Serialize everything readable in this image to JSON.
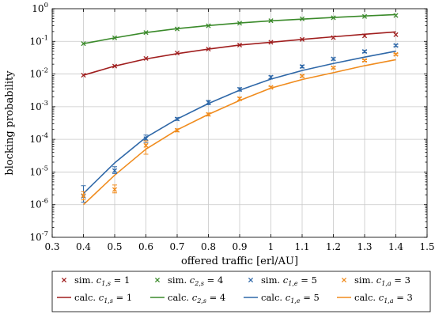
{
  "chart_data": {
    "type": "line",
    "xlabel": "offered traffic [erl/AU]",
    "ylabel": "blocking probability",
    "xlim": [
      0.3,
      1.5
    ],
    "ylim_log10": [
      -7,
      0
    ],
    "y_scale": "log",
    "grid": true,
    "legend_placement": "bottom",
    "x_ticks": [
      "0.3",
      "0.4",
      "0.5",
      "0.6",
      "0.7",
      "0.8",
      "0.9",
      "1",
      "1.1",
      "1.2",
      "1.3",
      "1.4",
      "1.5"
    ],
    "y_ticks": [
      {
        "base": "10",
        "exp": "-7"
      },
      {
        "base": "10",
        "exp": "-6"
      },
      {
        "base": "10",
        "exp": "-5"
      },
      {
        "base": "10",
        "exp": "-4"
      },
      {
        "base": "10",
        "exp": "-3"
      },
      {
        "base": "10",
        "exp": "-2"
      },
      {
        "base": "10",
        "exp": "-1"
      },
      {
        "base": "10",
        "exp": "0"
      }
    ],
    "x": [
      0.4,
      0.5,
      0.6,
      0.7,
      0.8,
      0.9,
      1.0,
      1.1,
      1.2,
      1.3,
      1.4
    ],
    "series": [
      {
        "name": "sim. c1,s = 1",
        "kind": "sim",
        "color": "#a01e1e",
        "legend": {
          "prefix": "sim.",
          "sub": "1,s",
          "value": "1"
        },
        "values": [
          0.0092,
          0.0175,
          0.03,
          0.044,
          0.058,
          0.077,
          0.094,
          0.115,
          0.13,
          0.148,
          0.16
        ],
        "err_low": null,
        "err_high": null
      },
      {
        "name": "sim. c2,s = 4",
        "kind": "sim",
        "color": "#3a8a2a",
        "legend": {
          "prefix": "sim.",
          "sub": "2,s",
          "value": "4"
        },
        "values": [
          0.085,
          0.128,
          0.186,
          0.24,
          0.3,
          0.36,
          0.43,
          0.49,
          0.53,
          0.58,
          0.62
        ],
        "err_low": null,
        "err_high": null
      },
      {
        "name": "sim. c1,e = 5",
        "kind": "sim",
        "color": "#2f68a8",
        "legend": {
          "prefix": "sim.",
          "sub": "1,e",
          "value": "5"
        },
        "values": [
          1.8e-06,
          1.1e-05,
          0.000105,
          0.00042,
          0.00135,
          0.0034,
          0.008,
          0.017,
          0.029,
          0.049,
          0.075
        ],
        "err_low": [
          1.2e-06,
          9e-06,
          8e-05,
          0.00038,
          0.00115,
          0.003,
          0.0072,
          0.0155,
          0.0265,
          0.045,
          0.069
        ],
        "err_high": [
          3.8e-06,
          1.45e-05,
          0.000135,
          0.00046,
          0.00155,
          0.0038,
          0.0088,
          0.0185,
          0.0315,
          0.053,
          0.081
        ]
      },
      {
        "name": "sim. c1,a = 3",
        "kind": "sim",
        "color": "#f08c1e",
        "legend": {
          "prefix": "sim.",
          "sub": "1,a",
          "value": "3"
        },
        "values": [
          1.9e-06,
          2.9e-06,
          6.5e-05,
          0.00019,
          0.00058,
          0.00175,
          0.0039,
          0.0087,
          0.0155,
          0.026,
          0.04
        ],
        "err_low": [
          1.4e-06,
          2.3e-06,
          3.5e-05,
          0.00017,
          0.00052,
          0.00155,
          0.0036,
          0.0081,
          0.0145,
          0.0245,
          0.0375
        ],
        "err_high": [
          2.5e-06,
          4e-06,
          9e-05,
          0.00021,
          0.00064,
          0.00195,
          0.0042,
          0.0093,
          0.0165,
          0.0275,
          0.0425
        ]
      },
      {
        "name": "calc. c1,s = 1",
        "kind": "calc",
        "color": "#a01e1e",
        "legend": {
          "prefix": "calc.",
          "sub": "1,s",
          "value": "1"
        },
        "values": [
          0.0092,
          0.0175,
          0.029,
          0.042,
          0.058,
          0.077,
          0.094,
          0.115,
          0.138,
          0.165,
          0.195
        ]
      },
      {
        "name": "calc. c2,s = 4",
        "kind": "calc",
        "color": "#3a8a2a",
        "legend": {
          "prefix": "calc.",
          "sub": "2,s",
          "value": "4"
        },
        "values": [
          0.085,
          0.128,
          0.186,
          0.245,
          0.305,
          0.365,
          0.425,
          0.48,
          0.54,
          0.6,
          0.66
        ]
      },
      {
        "name": "calc. c1,e = 5",
        "kind": "calc",
        "color": "#2f68a8",
        "legend": {
          "prefix": "calc.",
          "sub": "1,e",
          "value": "5"
        },
        "values": [
          2.2e-06,
          1.9e-05,
          0.000115,
          0.00042,
          0.00125,
          0.0032,
          0.007,
          0.0128,
          0.021,
          0.033,
          0.05
        ]
      },
      {
        "name": "calc. c1,a = 3",
        "kind": "calc",
        "color": "#f08c1e",
        "legend": {
          "prefix": "calc.",
          "sub": "1,a",
          "value": "3"
        },
        "values": [
          1e-06,
          8e-06,
          5e-05,
          0.000195,
          0.00058,
          0.00155,
          0.0037,
          0.0068,
          0.011,
          0.018,
          0.0275
        ]
      }
    ]
  }
}
